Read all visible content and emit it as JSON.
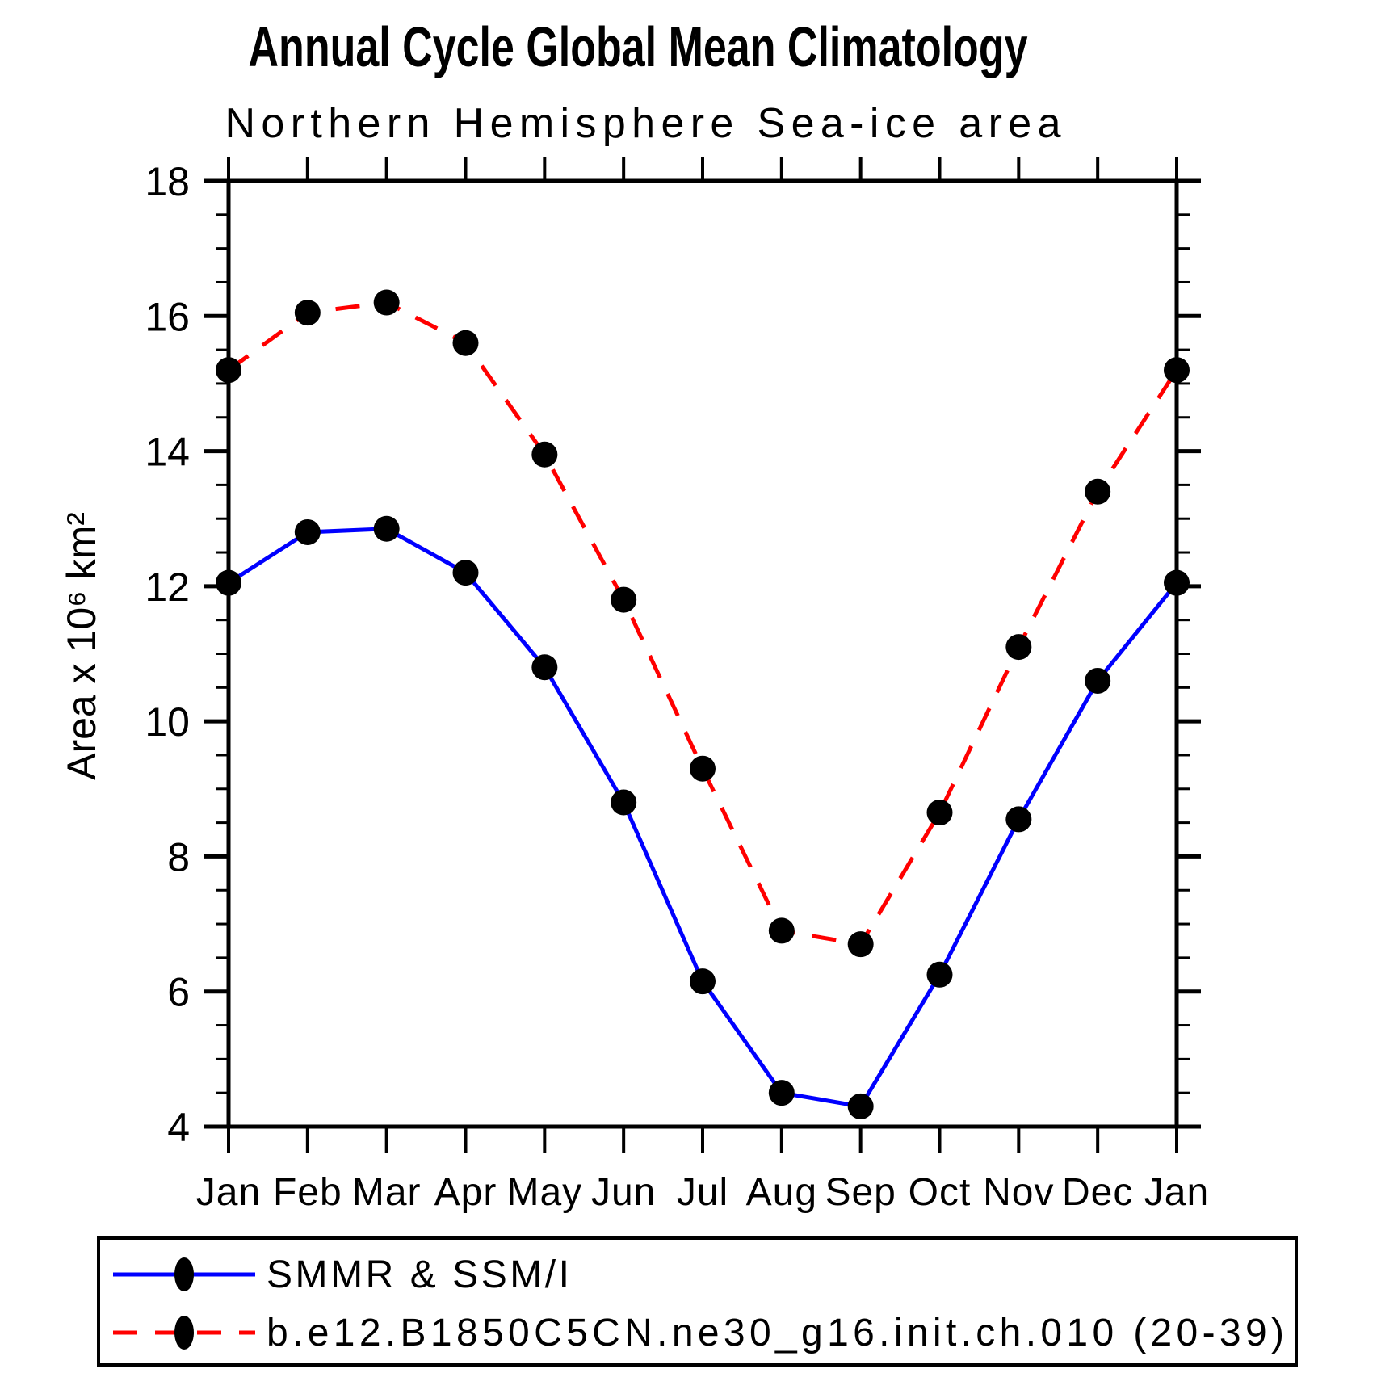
{
  "chart_data": {
    "type": "line",
    "title": "Annual Cycle Global Mean Climatology",
    "subtitle": "Northern Hemisphere Sea-ice area",
    "ylabel": "Area x 10⁶ km²",
    "xlabel": "",
    "categories": [
      "Jan",
      "Feb",
      "Mar",
      "Apr",
      "May",
      "Jun",
      "Jul",
      "Aug",
      "Sep",
      "Oct",
      "Nov",
      "Dec",
      "Jan"
    ],
    "ylim": [
      4,
      18
    ],
    "ytick_major": 2,
    "ytick_minor": 0.5,
    "grid": false,
    "legend_position": "bottom",
    "axis_color": "#000000",
    "marker_color": "#000000",
    "series": [
      {
        "name": "SMMR & SSM/I",
        "color": "#0000ff",
        "line": "solid",
        "marker": "filled-circle",
        "values": [
          12.05,
          12.8,
          12.85,
          12.2,
          10.8,
          8.8,
          6.15,
          4.5,
          4.3,
          6.25,
          8.55,
          10.6,
          12.05
        ]
      },
      {
        "name": "b.e12.B1850C5CN.ne30_g16.init.ch.010 (20-39)",
        "color": "#ff0000",
        "line": "dashed",
        "marker": "filled-circle",
        "values": [
          15.2,
          16.05,
          16.2,
          15.6,
          13.95,
          11.8,
          9.3,
          6.9,
          6.7,
          8.65,
          11.1,
          13.4,
          15.2
        ]
      }
    ]
  }
}
